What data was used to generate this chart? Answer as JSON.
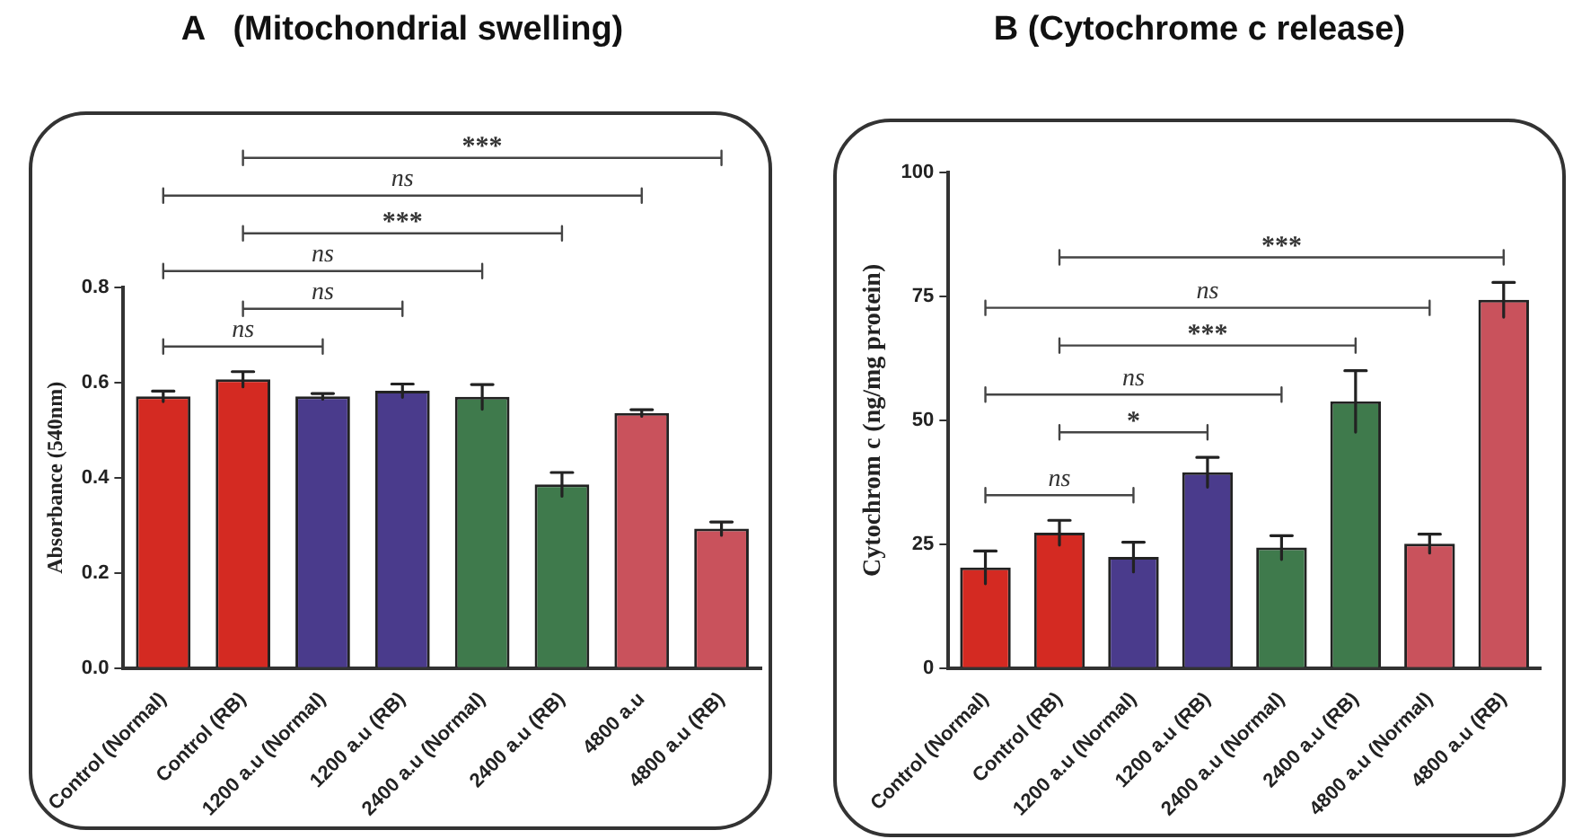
{
  "chart_data": [
    {
      "type": "bar",
      "title": "A   (Mitochondrial swelling)",
      "ylabel": "Absorbance (540nm)",
      "categories": [
        "Control (Normal)",
        "Control (RB)",
        "1200 a.u (Normal)",
        "1200 a.u (RB)",
        "2400 a.u (Normal)",
        "2400 a.u (RB)",
        "4800 a.u",
        "4800 a.u (RB)"
      ],
      "values": [
        0.571,
        0.607,
        0.571,
        0.583,
        0.57,
        0.386,
        0.536,
        0.293
      ],
      "errors": [
        0.011,
        0.016,
        0.006,
        0.014,
        0.026,
        0.025,
        0.007,
        0.014
      ],
      "colors": [
        "#d42a22",
        "#d42a22",
        "#4a3b8c",
        "#4a3b8c",
        "#3f7a4c",
        "#3f7a4c",
        "#c9525c",
        "#c9525c"
      ],
      "ylim": [
        0,
        0.8
      ],
      "yticks": [
        {
          "value": 0,
          "label": "0.0"
        },
        0.2,
        0.4,
        0.6,
        0.8
      ],
      "grid": false,
      "legend": false,
      "annotations": [
        "ns",
        "ns",
        "ns",
        "***",
        "ns",
        "***"
      ]
    },
    {
      "type": "bar",
      "title": "B (Cytochrome c release)",
      "ylabel": "Cytochrom c (ng/mg protein)",
      "categories": [
        "Control (Normal)",
        "Control (RB)",
        "1200 a.u (Normal)",
        "1200 a.u (RB)",
        "2400 a.u (Normal)",
        "2400 a.u (RB)",
        "4800 a.u (Normal)",
        "4800 a.u (RB)"
      ],
      "values": [
        20.3,
        27.3,
        22.4,
        39.5,
        24.3,
        53.8,
        25.1,
        74.3
      ],
      "errors": [
        3.3,
        2.5,
        3,
        3,
        2.4,
        6.2,
        1.9,
        3.5
      ],
      "colors": [
        "#d42a22",
        "#d42a22",
        "#4a3b8c",
        "#4a3b8c",
        "#3f7a4c",
        "#3f7a4c",
        "#c9525c",
        "#c9525c"
      ],
      "ylim": [
        0,
        100
      ],
      "yticks": [
        0,
        25,
        50,
        75,
        100
      ],
      "grid": false,
      "legend": false,
      "annotations": [
        "ns",
        "*",
        "ns",
        "***",
        "ns",
        "***"
      ]
    }
  ]
}
